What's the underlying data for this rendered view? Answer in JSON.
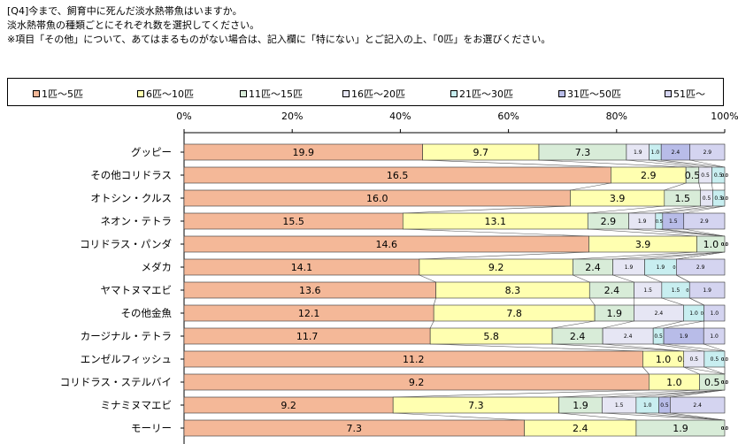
{
  "question": {
    "line1": "[Q4]今まで、飼育中に死んだ淡水熱帯魚はいますか。",
    "line2": "淡水熱帯魚の種類ごとにそれぞれ数を選択してください。",
    "line3": "※項目「その他」について、あてはまるものがない場合は、記入欄に「特にない」とご記入の上、「0匹」をお選びください。"
  },
  "colors": [
    "#f4b898",
    "#ffffb0",
    "#d8ecd8",
    "#e6e6f4",
    "#c8eef0",
    "#b8bce8",
    "#d4d4f0"
  ],
  "chart_data": {
    "type": "bar",
    "orientation": "horizontal",
    "stacked": "percent",
    "legend": [
      "1匹～5匹",
      "6匹～10匹",
      "11匹～15匹",
      "16匹～20匹",
      "21匹～30匹",
      "31匹～50匹",
      "51匹～"
    ],
    "legend_position": "top",
    "xlim": [
      0,
      100
    ],
    "x_ticks": [
      "0%",
      "20%",
      "40%",
      "60%",
      "80%",
      "100%"
    ],
    "categories": [
      "グッピー",
      "その他コリドラス",
      "オトシン・クルス",
      "ネオン・テトラ",
      "コリドラス・パンダ",
      "メダカ",
      "ヤマトヌマエビ",
      "その他金魚",
      "カージナル・テトラ",
      "エンゼルフィッシュ",
      "コリドラス・ステルバイ",
      "ミナミヌマエビ",
      "モーリー"
    ],
    "rows": [
      {
        "values": [
          19.9,
          9.7,
          7.3,
          1.9,
          1.0,
          2.4,
          2.9
        ],
        "labels": [
          "19.9",
          "9.7",
          "7.3",
          "1.9",
          "1.0",
          "2.4",
          "2.9"
        ]
      },
      {
        "values": [
          16.5,
          2.9,
          0.5,
          0.5,
          0.5,
          0.0,
          0.0
        ],
        "labels": [
          "16.5",
          "2.9",
          "0.5",
          "0.5",
          "0.5",
          "0.0",
          "0.0"
        ]
      },
      {
        "values": [
          16.0,
          3.9,
          1.5,
          0.5,
          0.5,
          0.0,
          0.0
        ],
        "labels": [
          "16.0",
          "3.9",
          "1.5",
          "0.5",
          "0.5",
          "0.0",
          "0.0"
        ]
      },
      {
        "values": [
          15.5,
          13.1,
          2.9,
          1.9,
          0.5,
          1.5,
          2.9
        ],
        "labels": [
          "15.5",
          "13.1",
          "2.9",
          "1.9",
          "0.5",
          "1.5",
          "2.9"
        ]
      },
      {
        "values": [
          14.6,
          3.9,
          1.0,
          0.0,
          0.0,
          0.0,
          0.0
        ],
        "labels": [
          "14.6",
          "3.9",
          "1.0",
          "0.0",
          "0.0",
          "0.0",
          "0.0"
        ]
      },
      {
        "values": [
          14.1,
          9.2,
          2.4,
          1.9,
          1.9,
          0.0,
          2.9
        ],
        "labels": [
          "14.1",
          "9.2",
          "2.4",
          "1.9",
          "1.9",
          "0.0",
          "2.9"
        ]
      },
      {
        "values": [
          13.6,
          8.3,
          2.4,
          1.5,
          1.5,
          0.0,
          1.9
        ],
        "labels": [
          "13.6",
          "8.3",
          "2.4",
          "1.5",
          "1.5",
          "0.0",
          "1.9"
        ]
      },
      {
        "values": [
          12.1,
          7.8,
          1.9,
          2.4,
          1.0,
          0.0,
          1.0
        ],
        "labels": [
          "12.1",
          "7.8",
          "1.9",
          "2.4",
          "1.0",
          "0.0",
          "1.0"
        ]
      },
      {
        "values": [
          11.7,
          5.8,
          2.4,
          2.4,
          0.5,
          1.9,
          1.0
        ],
        "labels": [
          "11.7",
          "5.8",
          "2.4",
          "2.4",
          "0.5",
          "1.9",
          "1.0"
        ]
      },
      {
        "values": [
          11.2,
          1.0,
          0.0,
          0.5,
          0.5,
          0.0,
          0.0
        ],
        "labels": [
          "11.2",
          "1.0",
          "0.0",
          "0.5",
          "0.5",
          "0.0",
          "0.0"
        ]
      },
      {
        "values": [
          9.2,
          1.0,
          0.5,
          0.0,
          0.0,
          0.0,
          0.0
        ],
        "labels": [
          "9.2",
          "1.0",
          "0.5",
          "0.0",
          "0.0",
          "0.0",
          "0.0"
        ]
      },
      {
        "values": [
          9.2,
          7.3,
          1.9,
          1.5,
          1.0,
          0.5,
          2.4
        ],
        "labels": [
          "9.2",
          "7.3",
          "1.9",
          "1.5",
          "1.0",
          "0.5",
          "2.4"
        ]
      },
      {
        "values": [
          7.3,
          2.4,
          1.9,
          0.0,
          0.0,
          0.0,
          0.0
        ],
        "labels": [
          "7.3",
          "2.4",
          "1.9",
          "0.0",
          "0.0",
          "0.0",
          "0.0"
        ]
      }
    ]
  }
}
